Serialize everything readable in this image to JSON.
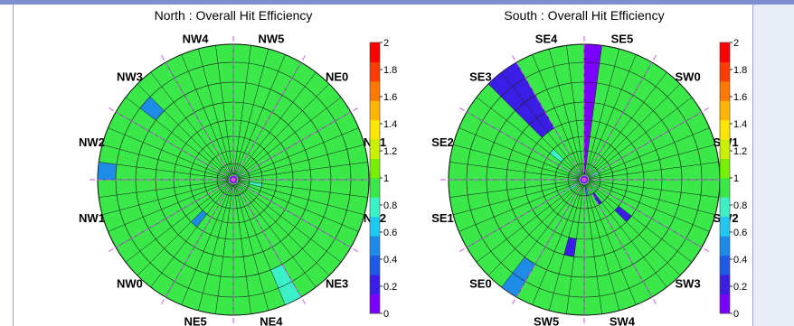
{
  "charts": [
    {
      "id": "north",
      "title": "North : Overall Hit Efficiency",
      "sector_labels": [
        "NW5",
        "NE0",
        "NE1",
        "NE2",
        "NE3",
        "NE4",
        "NE5",
        "NW0",
        "NW1",
        "NW2",
        "NW3",
        "NW4"
      ]
    },
    {
      "id": "south",
      "title": "South : Overall Hit Efficiency",
      "sector_labels": [
        "SE5",
        "SW0",
        "SW1",
        "SW2",
        "SW3",
        "SW4",
        "SW5",
        "SE0",
        "SE1",
        "SE2",
        "SE3",
        "SE4"
      ]
    }
  ],
  "colorbar": {
    "ticks": [
      "2",
      "1.8",
      "1.6",
      "1.4",
      "1.2",
      "1",
      "0.8",
      "0.6",
      "0.4",
      "0.2",
      "0"
    ],
    "range": [
      0,
      2
    ],
    "colors": [
      "#7a00ff",
      "#3a1ee6",
      "#1e5ae6",
      "#1e8ce6",
      "#1ec8f0",
      "#3cf0c8",
      "#3ae84a",
      "#78ee00",
      "#c8f000",
      "#ffe600",
      "#ffb400",
      "#ff7800",
      "#ff3c00",
      "#ff0000"
    ]
  },
  "chart_data": [
    {
      "type": "heatmap",
      "projection": "polar",
      "title": "North : Overall Hit Efficiency",
      "sectors": [
        "NW5",
        "NE0",
        "NE1",
        "NE2",
        "NE3",
        "NE4",
        "NE5",
        "NW0",
        "NW1",
        "NW2",
        "NW3",
        "NW4"
      ],
      "value_range": [
        0,
        2
      ],
      "baseline_value": 1.0,
      "rings": 8,
      "wedges": 48,
      "cells": [
        {
          "ring": 7,
          "wedge": 36,
          "value": 0.55
        },
        {
          "ring": 6,
          "wedge": 41,
          "value": 0.55
        },
        {
          "ring": 3,
          "wedge": 29,
          "value": 0.5
        },
        {
          "ring": 6,
          "wedge": 20,
          "value": 0.75
        },
        {
          "ring": 7,
          "wedge": 20,
          "value": 0.75
        },
        {
          "ring": 1,
          "wedge": 13,
          "value": 0.75
        }
      ]
    },
    {
      "type": "heatmap",
      "projection": "polar",
      "title": "South : Overall Hit Efficiency",
      "sectors": [
        "SE5",
        "SW0",
        "SW1",
        "SW2",
        "SW3",
        "SW4",
        "SW5",
        "SE0",
        "SE1",
        "SE2",
        "SE3",
        "SE4"
      ],
      "value_range": [
        0,
        2
      ],
      "baseline_value": 1.0,
      "rings": 8,
      "wedges": 48,
      "cells": [
        {
          "ring": 0,
          "wedge": 0,
          "value": 0.1
        },
        {
          "ring": 1,
          "wedge": 0,
          "value": 0.1
        },
        {
          "ring": 2,
          "wedge": 0,
          "value": 0.1
        },
        {
          "ring": 3,
          "wedge": 0,
          "value": 0.1
        },
        {
          "ring": 4,
          "wedge": 0,
          "value": 0.1
        },
        {
          "ring": 5,
          "wedge": 0,
          "value": 0.1
        },
        {
          "ring": 6,
          "wedge": 0,
          "value": 0.1
        },
        {
          "ring": 7,
          "wedge": 0,
          "value": 0.1
        },
        {
          "ring": 4,
          "wedge": 42,
          "value": 0.15
        },
        {
          "ring": 5,
          "wedge": 42,
          "value": 0.15
        },
        {
          "ring": 6,
          "wedge": 42,
          "value": 0.15
        },
        {
          "ring": 7,
          "wedge": 42,
          "value": 0.15
        },
        {
          "ring": 4,
          "wedge": 43,
          "value": 0.15
        },
        {
          "ring": 5,
          "wedge": 43,
          "value": 0.15
        },
        {
          "ring": 6,
          "wedge": 43,
          "value": 0.15
        },
        {
          "ring": 7,
          "wedge": 43,
          "value": 0.15
        },
        {
          "ring": 2,
          "wedge": 41,
          "value": 0.75
        },
        {
          "ring": 3,
          "wedge": 17,
          "value": 0.15
        },
        {
          "ring": 1,
          "wedge": 19,
          "value": 0.15
        },
        {
          "ring": 4,
          "wedge": 25,
          "value": 0.15
        },
        {
          "ring": 6,
          "wedge": 28,
          "value": 0.55
        },
        {
          "ring": 7,
          "wedge": 28,
          "value": 0.55
        },
        {
          "ring": 0,
          "wedge": 22,
          "value": 0.5
        },
        {
          "ring": 0,
          "wedge": 31,
          "value": 0.75
        },
        {
          "ring": 0,
          "wedge": 8,
          "value": 0.75
        }
      ]
    }
  ]
}
